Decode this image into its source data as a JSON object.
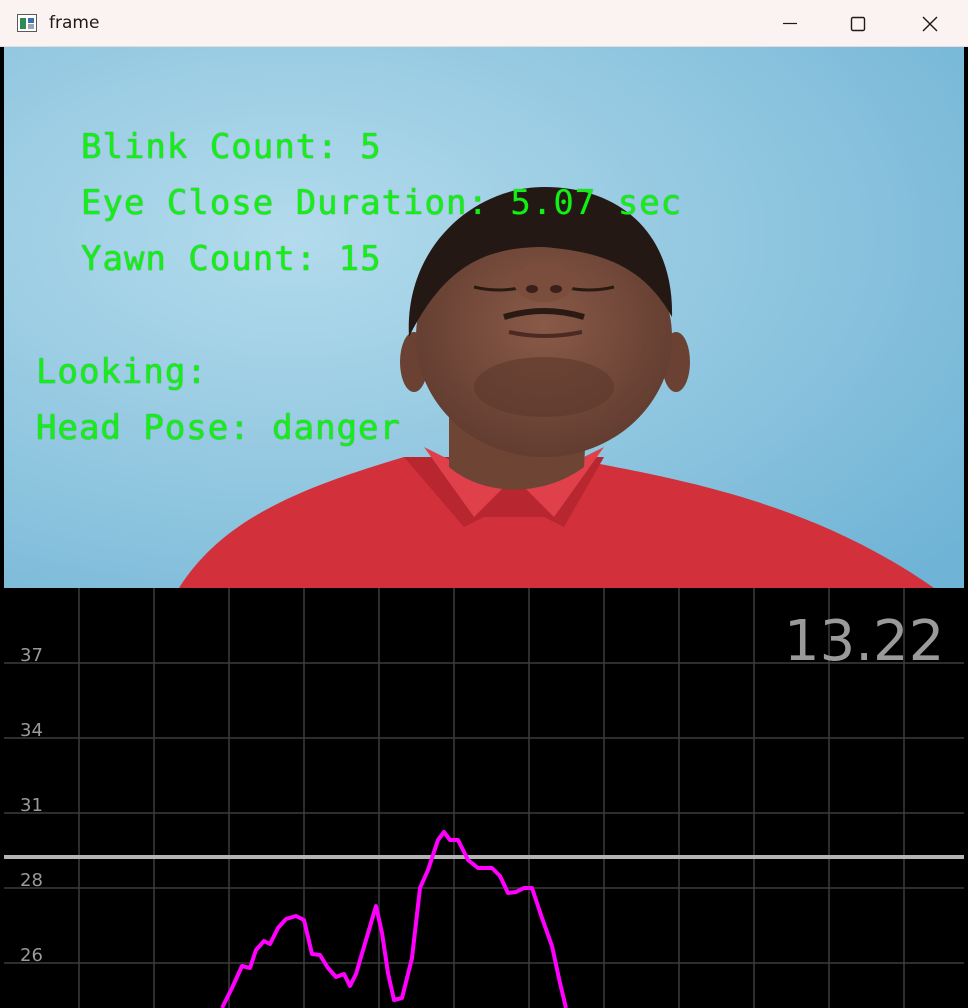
{
  "window": {
    "title": "frame",
    "icon": "opencv-window-icon",
    "controls": [
      "minimize-icon",
      "maximize-icon",
      "close-icon"
    ]
  },
  "overlay": {
    "blink_count": "Blink Count: 5",
    "eye_close_duration": "Eye Close Duration: 5.07 sec",
    "yawn_count": "Yawn Count: 15",
    "looking": "Looking:",
    "head_pose": "Head Pose: danger",
    "text_color": "#14f014"
  },
  "graph": {
    "current_value": "13.22",
    "y_ticks": [
      "37",
      "34",
      "31",
      "28",
      "26"
    ],
    "line_color": "#ff00ff",
    "threshold_color": "#b4b4b4",
    "grid_color": "#3c3c3c",
    "value_color": "#9a9a9a"
  }
}
